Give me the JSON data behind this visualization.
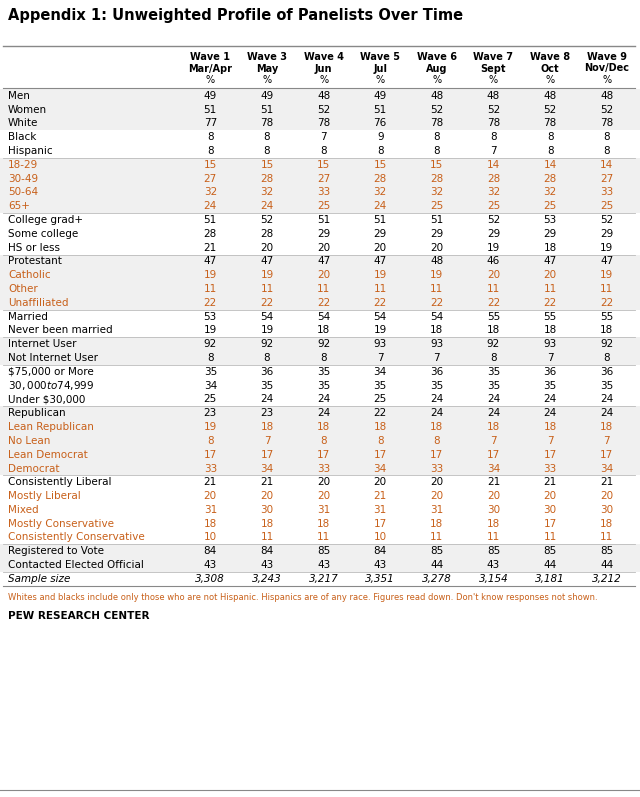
{
  "title": "Appendix 1: Unweighted Profile of Panelists Over Time",
  "header_labels": [
    [
      "Wave 1",
      "Mar/Apr",
      "%"
    ],
    [
      "Wave 3",
      "May",
      "%"
    ],
    [
      "Wave 4",
      "Jun",
      "%"
    ],
    [
      "Wave 5",
      "Jul",
      "%"
    ],
    [
      "Wave 6",
      "Aug",
      "%"
    ],
    [
      "Wave 7",
      "Sept",
      "%"
    ],
    [
      "Wave 8",
      "Oct",
      "%"
    ],
    [
      "Wave 9",
      "Nov/Dec",
      "%"
    ]
  ],
  "row_labels": [
    "Men",
    "Women",
    "White",
    "Black",
    "Hispanic",
    "18-29",
    "30-49",
    "50-64",
    "65+",
    "College grad+",
    "Some college",
    "HS or less",
    "Protestant",
    "Catholic",
    "Other",
    "Unaffiliated",
    "Married",
    "Never been married",
    "Internet User",
    "Not Internet User",
    "$75,000 or More",
    "$30,000 to $74,999",
    "Under $30,000",
    "Republican",
    "Lean Republican",
    "No Lean",
    "Lean Democrat",
    "Democrat",
    "Consistently Liberal",
    "Mostly Liberal",
    "Mixed",
    "Mostly Conservative",
    "Consistently Conservative",
    "Registered to Vote",
    "Contacted Elected Official",
    "Sample size"
  ],
  "data": [
    [
      49,
      49,
      48,
      49,
      48,
      48,
      48,
      48
    ],
    [
      51,
      51,
      52,
      51,
      52,
      52,
      52,
      52
    ],
    [
      77,
      78,
      78,
      76,
      78,
      78,
      78,
      78
    ],
    [
      8,
      8,
      7,
      9,
      8,
      8,
      8,
      8
    ],
    [
      8,
      8,
      8,
      8,
      8,
      7,
      8,
      8
    ],
    [
      15,
      15,
      15,
      15,
      15,
      14,
      14,
      14
    ],
    [
      27,
      28,
      27,
      28,
      28,
      28,
      28,
      27
    ],
    [
      32,
      32,
      33,
      32,
      32,
      32,
      32,
      33
    ],
    [
      24,
      24,
      25,
      24,
      25,
      25,
      25,
      25
    ],
    [
      51,
      52,
      51,
      51,
      51,
      52,
      53,
      52
    ],
    [
      28,
      28,
      29,
      29,
      29,
      29,
      29,
      29
    ],
    [
      21,
      20,
      20,
      20,
      20,
      19,
      18,
      19
    ],
    [
      47,
      47,
      47,
      47,
      48,
      46,
      47,
      47
    ],
    [
      19,
      19,
      20,
      19,
      19,
      20,
      20,
      19
    ],
    [
      11,
      11,
      11,
      11,
      11,
      11,
      11,
      11
    ],
    [
      22,
      22,
      22,
      22,
      22,
      22,
      22,
      22
    ],
    [
      53,
      54,
      54,
      54,
      54,
      55,
      55,
      55
    ],
    [
      19,
      19,
      18,
      19,
      18,
      18,
      18,
      18
    ],
    [
      92,
      92,
      92,
      93,
      93,
      92,
      93,
      92
    ],
    [
      8,
      8,
      8,
      7,
      7,
      8,
      7,
      8
    ],
    [
      35,
      36,
      35,
      34,
      36,
      35,
      36,
      36
    ],
    [
      34,
      35,
      35,
      35,
      35,
      35,
      35,
      35
    ],
    [
      25,
      24,
      24,
      25,
      24,
      24,
      24,
      24
    ],
    [
      23,
      23,
      24,
      22,
      24,
      24,
      24,
      24
    ],
    [
      19,
      18,
      18,
      18,
      18,
      18,
      18,
      18
    ],
    [
      8,
      7,
      8,
      8,
      8,
      7,
      7,
      7
    ],
    [
      17,
      17,
      17,
      17,
      17,
      17,
      17,
      17
    ],
    [
      33,
      34,
      33,
      34,
      33,
      34,
      33,
      34
    ],
    [
      21,
      21,
      20,
      20,
      20,
      21,
      21,
      21
    ],
    [
      20,
      20,
      20,
      21,
      20,
      20,
      20,
      20
    ],
    [
      31,
      30,
      31,
      31,
      31,
      30,
      30,
      30
    ],
    [
      18,
      18,
      18,
      17,
      18,
      18,
      17,
      18
    ],
    [
      10,
      11,
      11,
      10,
      11,
      11,
      11,
      11
    ],
    [
      84,
      84,
      85,
      84,
      85,
      85,
      85,
      85
    ],
    [
      43,
      43,
      43,
      43,
      44,
      43,
      44,
      44
    ],
    [
      "3,308",
      "3,243",
      "3,217",
      "3,351",
      "3,278",
      "3,154",
      "3,181",
      "3,212"
    ]
  ],
  "group_after_rows": [
    4,
    8,
    11,
    15,
    17,
    19,
    22,
    27,
    32,
    34
  ],
  "orange_rows": [
    5,
    6,
    7,
    8,
    13,
    14,
    15,
    24,
    25,
    26,
    27,
    29,
    30,
    31,
    32
  ],
  "sample_size_row": 35,
  "footnote": "Whites and blacks include only those who are not Hispanic. Hispanics are of any race. Figures read down. Don't know responses not shown.",
  "source": "PEW RESEARCH CENTER",
  "bg_gray": "#f0f0f0",
  "bg_white": "#ffffff",
  "orange_color": "#c8601a",
  "sep_line_color": "#bbbbbb",
  "border_color": "#888888"
}
